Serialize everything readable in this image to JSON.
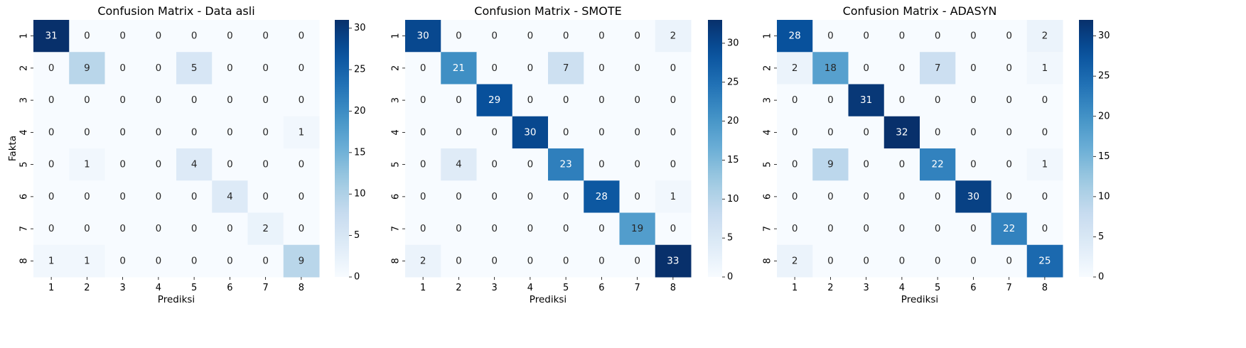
{
  "chart_data": [
    {
      "type": "heatmap",
      "title": "Confusion Matrix - Data asli",
      "xlabel": "Prediksi",
      "ylabel": "Fakta",
      "x_categories": [
        "1",
        "2",
        "3",
        "4",
        "5",
        "6",
        "7",
        "8"
      ],
      "y_categories": [
        "1",
        "2",
        "3",
        "4",
        "5",
        "6",
        "7",
        "8"
      ],
      "values": [
        [
          31,
          0,
          0,
          0,
          0,
          0,
          0,
          0
        ],
        [
          0,
          9,
          0,
          0,
          5,
          0,
          0,
          0
        ],
        [
          0,
          0,
          0,
          0,
          0,
          0,
          0,
          0
        ],
        [
          0,
          0,
          0,
          0,
          0,
          0,
          0,
          1
        ],
        [
          0,
          1,
          0,
          0,
          4,
          0,
          0,
          0
        ],
        [
          0,
          0,
          0,
          0,
          0,
          4,
          0,
          0
        ],
        [
          0,
          0,
          0,
          0,
          0,
          0,
          2,
          0
        ],
        [
          1,
          1,
          0,
          0,
          0,
          0,
          0,
          9
        ]
      ],
      "colorbar": {
        "min": 0,
        "max": 31,
        "ticks": [
          0,
          5,
          10,
          15,
          20,
          25,
          30
        ]
      },
      "colormap": "Blues"
    },
    {
      "type": "heatmap",
      "title": "Confusion Matrix - SMOTE",
      "xlabel": "Prediksi",
      "ylabel": "",
      "x_categories": [
        "1",
        "2",
        "3",
        "4",
        "5",
        "6",
        "7",
        "8"
      ],
      "y_categories": [
        "1",
        "2",
        "3",
        "4",
        "5",
        "6",
        "7",
        "8"
      ],
      "values": [
        [
          30,
          0,
          0,
          0,
          0,
          0,
          0,
          2
        ],
        [
          0,
          21,
          0,
          0,
          7,
          0,
          0,
          0
        ],
        [
          0,
          0,
          29,
          0,
          0,
          0,
          0,
          0
        ],
        [
          0,
          0,
          0,
          30,
          0,
          0,
          0,
          0
        ],
        [
          0,
          4,
          0,
          0,
          23,
          0,
          0,
          0
        ],
        [
          0,
          0,
          0,
          0,
          0,
          28,
          0,
          1
        ],
        [
          0,
          0,
          0,
          0,
          0,
          0,
          19,
          0
        ],
        [
          2,
          0,
          0,
          0,
          0,
          0,
          0,
          33
        ]
      ],
      "colorbar": {
        "min": 0,
        "max": 33,
        "ticks": [
          0,
          5,
          10,
          15,
          20,
          25,
          30
        ]
      },
      "colormap": "Blues"
    },
    {
      "type": "heatmap",
      "title": "Confusion Matrix - ADASYN",
      "xlabel": "Prediksi",
      "ylabel": "",
      "x_categories": [
        "1",
        "2",
        "3",
        "4",
        "5",
        "6",
        "7",
        "8"
      ],
      "y_categories": [
        "1",
        "2",
        "3",
        "4",
        "5",
        "6",
        "7",
        "8"
      ],
      "values": [
        [
          28,
          0,
          0,
          0,
          0,
          0,
          0,
          2
        ],
        [
          2,
          18,
          0,
          0,
          7,
          0,
          0,
          1
        ],
        [
          0,
          0,
          31,
          0,
          0,
          0,
          0,
          0
        ],
        [
          0,
          0,
          0,
          32,
          0,
          0,
          0,
          0
        ],
        [
          0,
          9,
          0,
          0,
          22,
          0,
          0,
          1
        ],
        [
          0,
          0,
          0,
          0,
          0,
          30,
          0,
          0
        ],
        [
          0,
          0,
          0,
          0,
          0,
          0,
          22,
          0
        ],
        [
          2,
          0,
          0,
          0,
          0,
          0,
          0,
          25
        ]
      ],
      "colorbar": {
        "min": 0,
        "max": 32,
        "ticks": [
          0,
          5,
          10,
          15,
          20,
          25,
          30
        ]
      },
      "colormap": "Blues"
    }
  ]
}
